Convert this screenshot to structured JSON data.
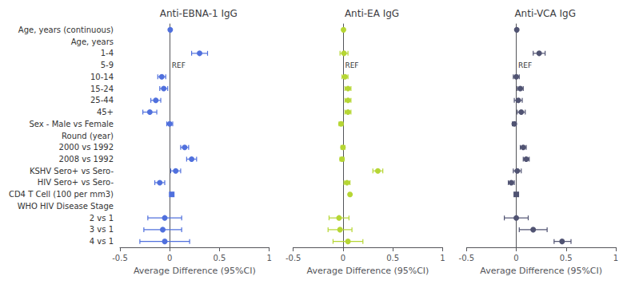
{
  "chart_data": {
    "type": "forest",
    "xlabel": "Average Difference (95%CI)",
    "xlim": [
      -0.5,
      1.0
    ],
    "xticks": [
      -0.5,
      0,
      0.5,
      1.0
    ],
    "grid": false,
    "categories": [
      "Age, years (continuous)",
      "Age, years",
      "1-4",
      "5-9",
      "10-14",
      "15-24",
      "25-44",
      "45+",
      "Sex - Male vs Female",
      "Round (year)",
      "2000 vs 1992",
      "2008 vs 1992",
      "KSHV Sero+ vs Sero-",
      "HIV Sero+ vs Sero-",
      "CD4 T Cell (100 per mm3)",
      "WHO HIV Disease Stage",
      "2 vs 1",
      "3 vs 1",
      "4 vs 1"
    ],
    "series": [
      {
        "name": "Anti-EBNA-1 IgG",
        "values": [
          0.005,
          null,
          0.3,
          null,
          -0.08,
          -0.06,
          -0.14,
          -0.2,
          0.0,
          null,
          0.15,
          0.22,
          0.06,
          -0.1,
          0.02,
          null,
          -0.05,
          -0.07,
          -0.05
        ],
        "lo": [
          null,
          null,
          0.22,
          null,
          -0.12,
          -0.1,
          -0.19,
          -0.27,
          -0.03,
          null,
          0.11,
          0.17,
          0.01,
          -0.15,
          0.01,
          null,
          -0.22,
          -0.26,
          -0.3
        ],
        "hi": [
          null,
          null,
          0.38,
          null,
          -0.04,
          -0.02,
          -0.09,
          -0.13,
          0.03,
          null,
          0.19,
          0.27,
          0.11,
          -0.05,
          0.03,
          null,
          0.12,
          0.12,
          0.2
        ],
        "marker": [
          "circle",
          null,
          "circle",
          null,
          "circle",
          "circle",
          "circle",
          "circle",
          "circle",
          null,
          "circle",
          "circle",
          "circle",
          "circle",
          "square",
          null,
          "circle",
          "circle",
          "circle"
        ],
        "annotations": [
          {
            "text": "REF",
            "x": 0.02,
            "category": "5-9"
          }
        ]
      },
      {
        "name": "Anti-EA IgG",
        "values": [
          0.005,
          null,
          0.01,
          null,
          0.02,
          0.05,
          0.05,
          0.05,
          -0.02,
          null,
          0.0,
          -0.01,
          0.35,
          0.04,
          0.07,
          null,
          -0.04,
          -0.03,
          0.05
        ],
        "lo": [
          null,
          null,
          -0.03,
          null,
          -0.01,
          0.02,
          0.02,
          0.02,
          -0.04,
          null,
          -0.02,
          -0.03,
          0.3,
          0.01,
          0.06,
          null,
          -0.14,
          -0.15,
          -0.1
        ],
        "hi": [
          null,
          null,
          0.05,
          null,
          0.05,
          0.08,
          0.08,
          0.08,
          0.0,
          null,
          0.02,
          0.01,
          0.4,
          0.07,
          0.08,
          null,
          0.06,
          0.09,
          0.2
        ],
        "marker": [
          "circle",
          null,
          "circle",
          null,
          "circle",
          "circle",
          "circle",
          "circle",
          "circle",
          null,
          "circle",
          "circle",
          "circle",
          "circle",
          "circle",
          null,
          "circle",
          "circle",
          "circle"
        ],
        "annotations": [
          {
            "text": "REF",
            "x": 0.02,
            "category": "5-9"
          }
        ]
      },
      {
        "name": "Anti-VCA IgG",
        "values": [
          0.005,
          null,
          0.23,
          null,
          0.0,
          0.04,
          0.02,
          0.05,
          -0.02,
          null,
          0.07,
          0.1,
          0.01,
          -0.05,
          0.0,
          null,
          0.0,
          0.17,
          0.46
        ],
        "lo": [
          null,
          null,
          0.17,
          null,
          -0.03,
          0.01,
          -0.02,
          0.01,
          -0.04,
          null,
          0.04,
          0.07,
          -0.03,
          -0.08,
          -0.01,
          null,
          -0.12,
          0.03,
          0.38
        ],
        "hi": [
          null,
          null,
          0.29,
          null,
          0.03,
          0.07,
          0.06,
          0.09,
          0.0,
          null,
          0.1,
          0.13,
          0.05,
          -0.02,
          0.01,
          null,
          0.12,
          0.31,
          0.55
        ],
        "marker": [
          "circle",
          null,
          "circle",
          null,
          "circle",
          "circle",
          "circle",
          "circle",
          "circle",
          null,
          "circle",
          "circle",
          "circle",
          "circle",
          "square",
          null,
          "circle",
          "circle",
          "circle"
        ],
        "annotations": [
          {
            "text": "REF",
            "x": 0.02,
            "category": "5-9"
          }
        ]
      }
    ]
  }
}
